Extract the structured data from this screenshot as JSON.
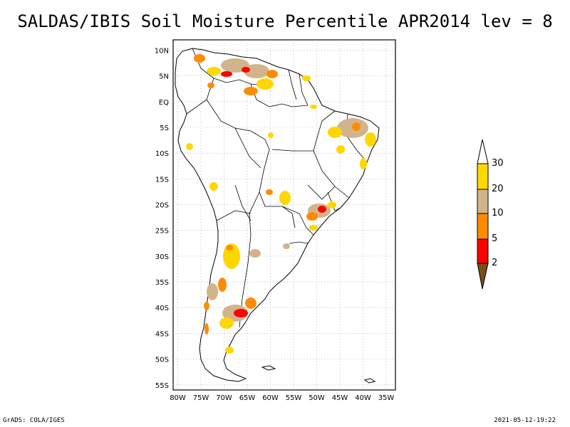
{
  "title": "SALDAS/IBIS Soil Moisture Percentile APR2014 lev = 8",
  "lat_ticks": [
    "10N",
    "5N",
    "EQ",
    "5S",
    "10S",
    "15S",
    "20S",
    "25S",
    "30S",
    "35S",
    "40S",
    "45S",
    "50S",
    "55S"
  ],
  "lon_ticks": [
    "80W",
    "75W",
    "70W",
    "65W",
    "60W",
    "55W",
    "50W",
    "45W",
    "40W",
    "35W"
  ],
  "lat_range": [
    -56,
    12
  ],
  "lon_range": [
    -81,
    -33
  ],
  "colorbar": {
    "labels": [
      "2",
      "5",
      "10",
      "20",
      "30"
    ],
    "colors": {
      "below_2": "#7a4a1a",
      "2_5": "#ff0000",
      "5_10": "#ff8c00",
      "10_20": "#d2b48c",
      "20_30": "#ffd700",
      "above_30": "#ffffff"
    }
  },
  "footer_left": "GrADS: COLA/IGES",
  "footer_right": "2021-05-12-19:22"
}
